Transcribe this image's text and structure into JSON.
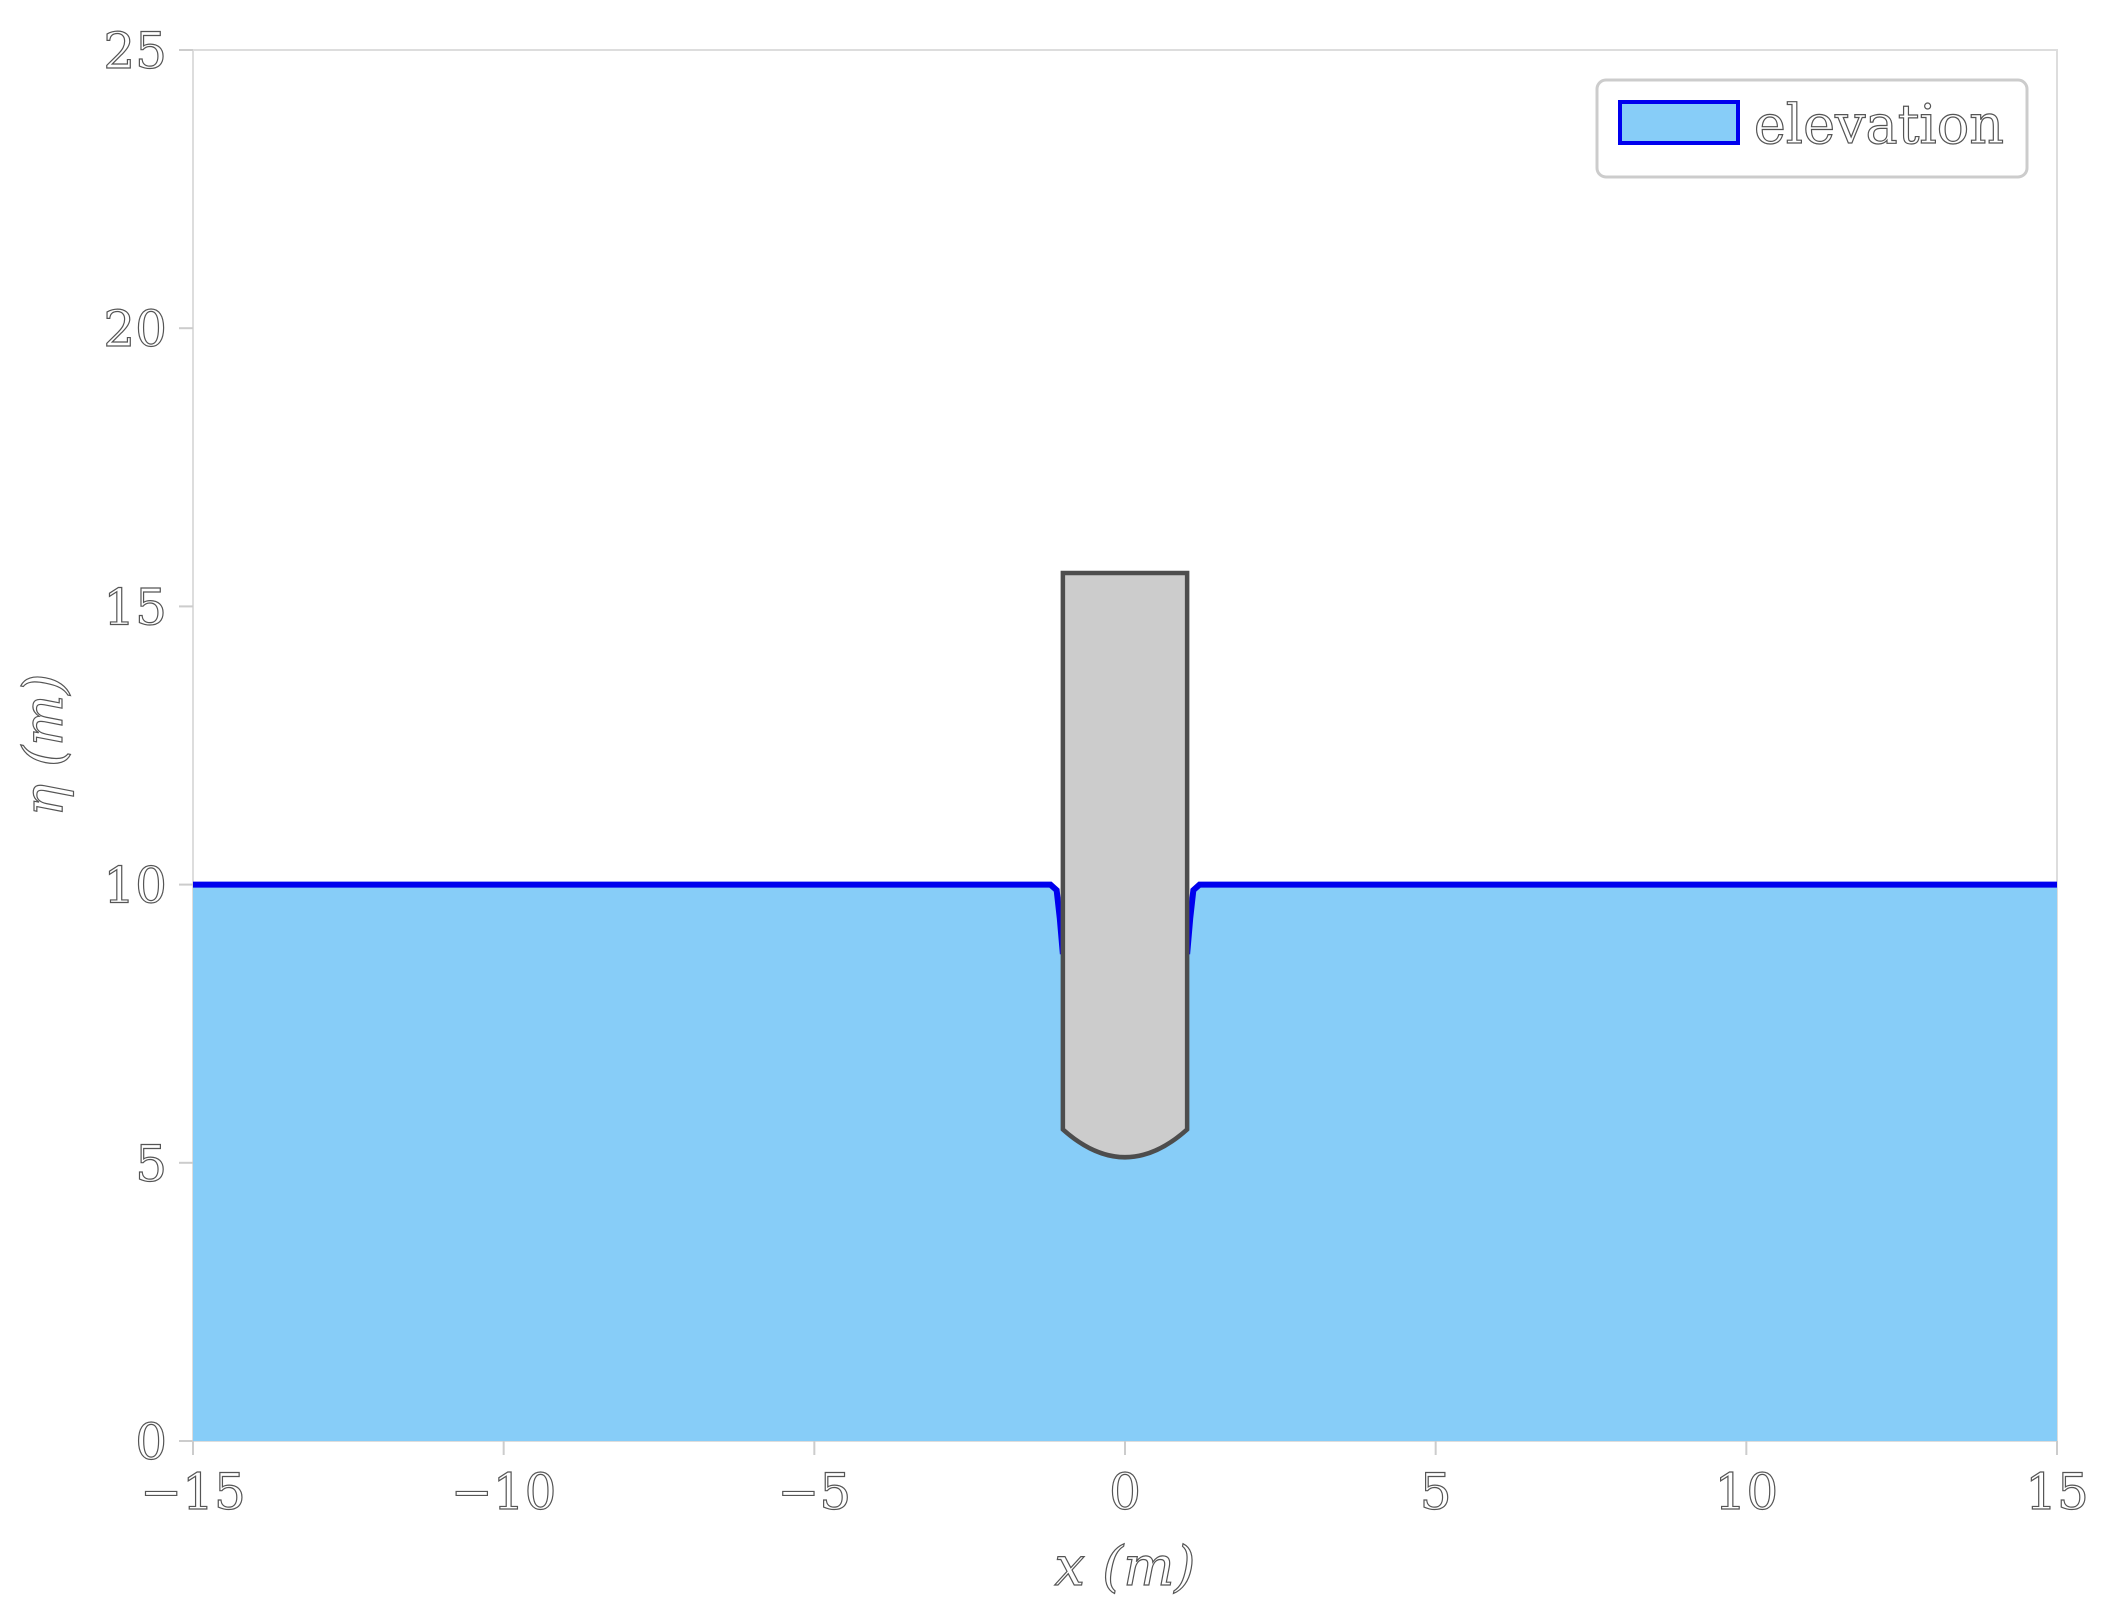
{
  "chart_data": {
    "type": "area",
    "xlabel": "x (m)",
    "ylabel": "η (m)",
    "xlim": [
      -15,
      15
    ],
    "ylim": [
      0,
      25
    ],
    "xticks": [
      -15,
      -10,
      -5,
      0,
      5,
      10,
      15
    ],
    "yticks": [
      0,
      5,
      10,
      15,
      20,
      25
    ],
    "xtick_labels": [
      "−15",
      "−10",
      "−5",
      "0",
      "5",
      "10",
      "15"
    ],
    "ytick_labels": [
      "0",
      "5",
      "10",
      "15",
      "20",
      "25"
    ],
    "grid": false,
    "legend": {
      "position": "top-right",
      "entries": [
        "elevation"
      ]
    },
    "series": [
      {
        "name": "elevation",
        "fill_color": "#87cdf8",
        "line_color": "#0000ee",
        "x": [
          -15,
          -10,
          -5,
          -1.2,
          -1.1,
          -1.05,
          -1.0,
          1.0,
          1.05,
          1.1,
          1.2,
          5,
          10,
          15
        ],
        "y": [
          10,
          10,
          10,
          10,
          9.9,
          9.4,
          8.75,
          8.75,
          9.4,
          9.9,
          10,
          10,
          10,
          10
        ]
      }
    ],
    "body": {
      "x_left": -1.0,
      "x_right": 1.0,
      "y_top": 15.6,
      "y_side_bottom": 5.6,
      "y_bottom_center": 5.1,
      "fill_color": "#cccccc",
      "edge_color": "#4d4d4d"
    }
  }
}
